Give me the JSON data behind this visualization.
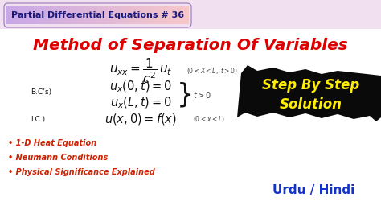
{
  "bg_color": "#ffffff",
  "outer_bg": "#f0e0f0",
  "title_badge_text": "Partial Differential Equations # 36",
  "badge_bg_left": "#c8a8e8",
  "badge_bg_right": "#f8c8c8",
  "main_title": "Method of Separation Of Variables",
  "main_title_color": "#dd0000",
  "eq_main": "$u_{xx} = \\dfrac{1}{c^2}\\,u_t$",
  "eq_cond1": "$(0 < X < L,\\ t > 0)$",
  "eq_bc_label": "B.C’s)",
  "eq_bc1": "$u_x(0,t) = 0$",
  "eq_bc2": "$u_x(L,t) = 0$",
  "eq_bc_side": "$t > 0$",
  "eq_ic_label": "I.C.)",
  "eq_ic": "$u(x,0) = f(x)$",
  "eq_ic_side": "$(0 < x < L)$",
  "bullet1": "1-D Heat Equation",
  "bullet2": "Neumann Conditions",
  "bullet3": "Physical Significance Explained",
  "bullet_color": "#cc2200",
  "step_line1": "Step By Step",
  "step_line2": "Solution",
  "step_text_color": "#ffee00",
  "step_bg_color": "#0a0a0a",
  "urdu_hindi": "Urdu / Hindi",
  "urdu_color": "#1133cc",
  "eq_color": "#111111",
  "small_text_color": "#444444",
  "badge_text_color": "#1a1a7e"
}
